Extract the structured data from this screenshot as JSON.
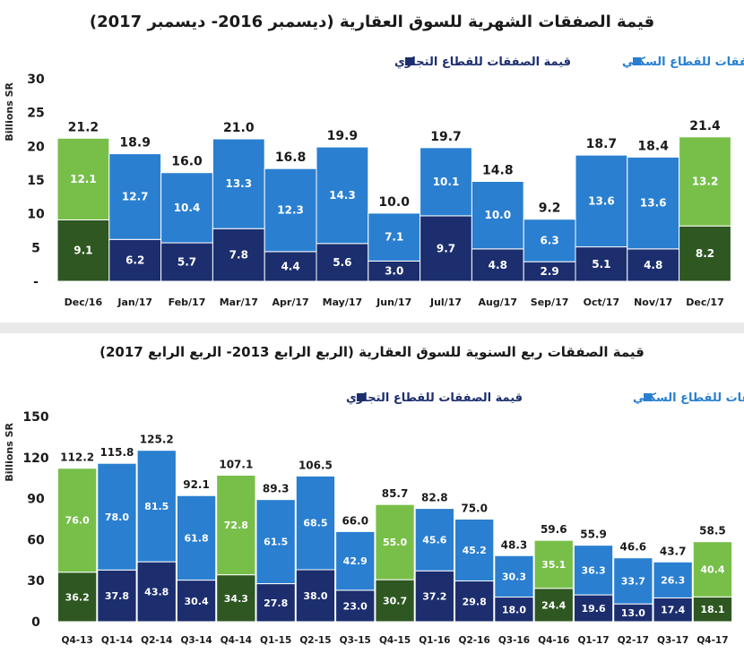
{
  "chart_data": [
    {
      "type": "bar",
      "stacked": true,
      "title": "قيمة الصفقات الشهرية للسوق العقارية (ديسمبر 2016- ديسمبر 2017)",
      "ylabel": "Billions SR",
      "ylim": [
        0,
        30
      ],
      "yticks": [
        "-",
        "5",
        "10",
        "15",
        "20",
        "25",
        "30"
      ],
      "legend": [
        "قيمة الصفقات للقطاع السكني",
        "قيمة الصفقات للقطاع التجاري"
      ],
      "categories": [
        "Dec/16",
        "Jan/17",
        "Feb/17",
        "Mar/17",
        "Apr/17",
        "May/17",
        "Jun/17",
        "Jul/17",
        "Aug/17",
        "Sep/17",
        "Oct/17",
        "Nov/17",
        "Dec/17"
      ],
      "series": [
        {
          "name": "قيمة الصفقات للقطاع التجاري",
          "values": [
            9.1,
            6.2,
            5.7,
            7.8,
            4.4,
            5.6,
            3.0,
            9.7,
            4.8,
            2.9,
            5.1,
            4.8,
            8.2
          ]
        },
        {
          "name": "قيمة الصفقات للقطاع السكني",
          "values": [
            12.1,
            12.7,
            10.4,
            13.3,
            12.3,
            14.3,
            7.1,
            10.1,
            10.0,
            6.3,
            13.6,
            13.6,
            13.2
          ]
        }
      ],
      "totals": [
        21.2,
        18.9,
        16.0,
        21.0,
        16.8,
        19.9,
        10.0,
        19.7,
        14.8,
        9.2,
        18.7,
        18.4,
        21.4
      ],
      "highlight": [
        0,
        12
      ],
      "colors": {
        "res": "#2a7fd0",
        "com": "#1c2e6e",
        "res_hi": "#78bf4a",
        "com_hi": "#2e5722"
      }
    },
    {
      "type": "bar",
      "stacked": true,
      "title": "قيمة الصفقات ربع السنوية للسوق العقارية (الربع الرابع 2013- الربع الرابع 2017)",
      "ylabel": "Billions SR",
      "ylim": [
        0,
        150
      ],
      "yticks": [
        "0",
        "30",
        "60",
        "90",
        "120",
        "150"
      ],
      "legend": [
        "قيمة الصفقات للقطاع السكني",
        "قيمة الصفقات للقطاع التجاري"
      ],
      "categories": [
        "Q4-13",
        "Q1-14",
        "Q2-14",
        "Q3-14",
        "Q4-14",
        "Q1-15",
        "Q2-15",
        "Q3-15",
        "Q4-15",
        "Q1-16",
        "Q2-16",
        "Q3-16",
        "Q4-16",
        "Q1-17",
        "Q2-17",
        "Q3-17",
        "Q4-17"
      ],
      "series": [
        {
          "name": "قيمة الصفقات للقطاع التجاري",
          "values": [
            36.2,
            37.8,
            43.8,
            30.4,
            34.3,
            27.8,
            38.0,
            23.0,
            30.7,
            37.2,
            29.8,
            18.0,
            24.4,
            19.6,
            13.0,
            17.4,
            18.1
          ]
        },
        {
          "name": "قيمة الصفقات للقطاع السكني",
          "values": [
            76.0,
            78.0,
            81.5,
            61.8,
            72.8,
            61.5,
            68.5,
            42.9,
            55.0,
            45.6,
            45.2,
            30.3,
            35.1,
            36.3,
            33.7,
            26.3,
            40.4
          ]
        }
      ],
      "totals": [
        112.2,
        115.8,
        125.2,
        92.1,
        107.1,
        89.3,
        106.5,
        66.0,
        85.7,
        82.8,
        75.0,
        48.3,
        59.6,
        55.9,
        46.6,
        43.7,
        58.5
      ],
      "highlight": [
        0,
        4,
        8,
        12,
        16
      ],
      "colors": {
        "res": "#2a7fd0",
        "com": "#1c2e6e",
        "res_hi": "#78bf4a",
        "com_hi": "#2e5722"
      }
    }
  ]
}
